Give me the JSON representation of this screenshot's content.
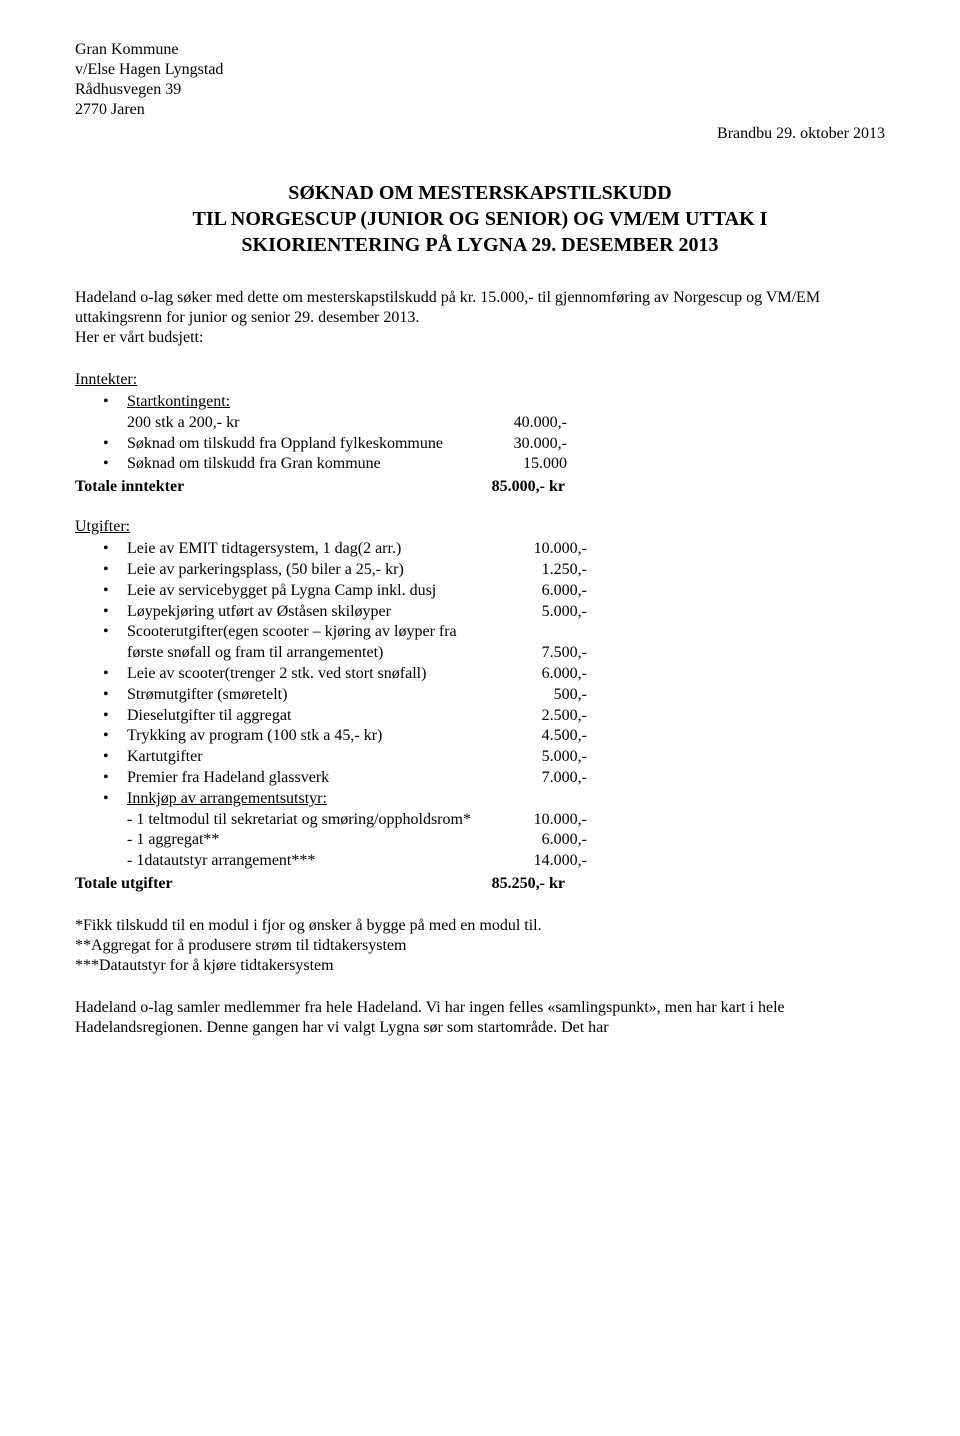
{
  "address": {
    "l1": "Gran Kommune",
    "l2": "v/Else Hagen Lyngstad",
    "l3": "Rådhusvegen 39",
    "l4": "2770 Jaren"
  },
  "date": "Brandbu 29. oktober 2013",
  "title": {
    "l1": "SØKNAD OM MESTERSKAPSTILSKUDD",
    "l2": "TIL NORGESCUP (JUNIOR OG SENIOR) OG VM/EM UTTAK I",
    "l3": "SKIORIENTERING PÅ LYGNA 29. DESEMBER 2013"
  },
  "intro": "Hadeland o-lag søker med dette om mesterskapstilskudd på kr. 15.000,- til gjennomføring av Norgescup og VM/EM uttakingsrenn for junior og senior 29. desember 2013.",
  "intro2": "Her er vårt budsjett:",
  "income": {
    "heading": "Inntekter:",
    "startkontingent_label": "Startkontingent:",
    "startkontingent_sub": "200 stk a 200,- kr",
    "startkontingent_val": "40.000,-",
    "oppland_label": "Søknad om tilskudd fra Oppland fylkeskommune",
    "oppland_val": "30.000,-",
    "gran_label": "Søknad om tilskudd fra Gran kommune",
    "gran_val": "15.000",
    "total_label": "Totale inntekter",
    "total_val": "85.000,- kr"
  },
  "expenses": {
    "heading": "Utgifter:",
    "items": [
      {
        "label": "Leie av EMIT tidtagersystem, 1 dag(2 arr.)",
        "val": "10.000,-"
      },
      {
        "label": "Leie av parkeringsplass, (50 biler a 25,- kr)",
        "val": "1.250,-"
      },
      {
        "label": "Leie av servicebygget på Lygna Camp inkl. dusj",
        "val": "6.000,-"
      },
      {
        "label": "Løypekjøring utført av Øståsen skiløyper",
        "val": "5.000,-"
      }
    ],
    "scooter_l1": "Scooterutgifter(egen scooter – kjøring av løyper fra",
    "scooter_l2": "første snøfall og fram til arrangementet)",
    "scooter_val": "7.500,-",
    "items2": [
      {
        "label": "Leie av scooter(trenger 2 stk. ved stort snøfall)",
        "val": "6.000,-"
      },
      {
        "label": "Strømutgifter (smøretelt)",
        "val": "500,-"
      },
      {
        "label": "Dieselutgifter til aggregat",
        "val": "2.500,-"
      },
      {
        "label": "Trykking av program (100 stk a 45,- kr)",
        "val": "4.500,-"
      },
      {
        "label": "Kartutgifter",
        "val": "5.000,-"
      },
      {
        "label": "Premier fra Hadeland glassverk",
        "val": "7.000,-"
      }
    ],
    "equip_heading": "Innkjøp av arrangementsutstyr:",
    "equip1_label": "- 1 teltmodul til sekretariat og smøring/oppholdsrom*",
    "equip1_val": "10.000,-",
    "equip2_label": "- 1 aggregat**",
    "equip2_val": "6.000,-",
    "equip3_label": "- 1datautstyr arrangement***",
    "equip3_val": "14.000,-",
    "total_label": "Totale utgifter",
    "total_val": "85.250,- kr"
  },
  "footnotes": {
    "l1": "*Fikk tilskudd til en modul i fjor og ønsker å bygge på med en modul til.",
    "l2": "**Aggregat for å produsere strøm til tidtakersystem",
    "l3": "***Datautstyr for å kjøre tidtakersystem"
  },
  "closing": "Hadeland o-lag samler medlemmer fra hele Hadeland. Vi har ingen felles «samlingspunkt», men har kart i hele Hadelandsregionen. Denne gangen har vi valgt Lygna sør som startområde. Det har"
}
